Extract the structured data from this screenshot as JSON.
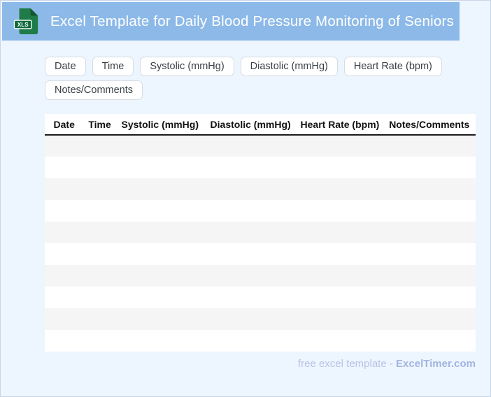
{
  "header": {
    "title": "Excel Template for Daily Blood Pressure Monitoring of Seniors",
    "file_badge": "XLS"
  },
  "chips": [
    "Date",
    "Time",
    "Systolic (mmHg)",
    "Diastolic (mmHg)",
    "Heart Rate (bpm)",
    "Notes/Comments"
  ],
  "table": {
    "columns": [
      "Date",
      "Time",
      "Systolic (mmHg)",
      "Diastolic (mmHg)",
      "Heart Rate (bpm)",
      "Notes/Comments"
    ],
    "rows": [
      [
        "",
        "",
        "",
        "",
        "",
        ""
      ],
      [
        "",
        "",
        "",
        "",
        "",
        ""
      ],
      [
        "",
        "",
        "",
        "",
        "",
        ""
      ],
      [
        "",
        "",
        "",
        "",
        "",
        ""
      ],
      [
        "",
        "",
        "",
        "",
        "",
        ""
      ],
      [
        "",
        "",
        "",
        "",
        "",
        ""
      ],
      [
        "",
        "",
        "",
        "",
        "",
        ""
      ],
      [
        "",
        "",
        "",
        "",
        "",
        ""
      ],
      [
        "",
        "",
        "",
        "",
        "",
        ""
      ],
      [
        "",
        "",
        "",
        "",
        "",
        ""
      ]
    ]
  },
  "footer": {
    "label": "free excel template -",
    "brand": "ExcelTimer.com"
  },
  "colors": {
    "header_bg": "#8CB9E8",
    "page_bg": "#EDF5FE",
    "stripe": "#F5F5F5",
    "icon_green": "#1F7B47",
    "icon_fold": "#14552F",
    "badge_green": "#0E6B3D",
    "footer_label": "#B7C4E9",
    "footer_brand": "#A3B5E2"
  }
}
